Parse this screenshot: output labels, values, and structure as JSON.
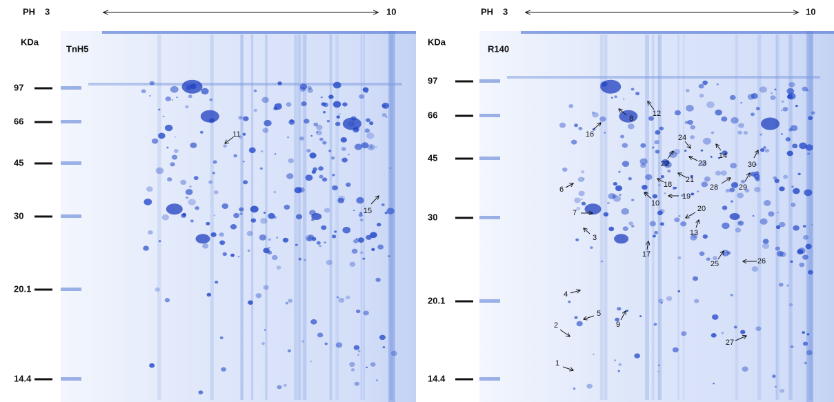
{
  "panels": [
    {
      "ph_label": "PH",
      "ph_start": "3",
      "ph_end": "10",
      "unit": "KDa",
      "sample": "TnH5",
      "markers": [
        97,
        66,
        45,
        30,
        20.1,
        14.4
      ],
      "spots": [
        "11",
        "15"
      ]
    },
    {
      "ph_label": "PH",
      "ph_start": "3",
      "ph_end": "10",
      "unit": "KDa",
      "sample": "R140",
      "markers": [
        97,
        66,
        45,
        30,
        20.1,
        14.4
      ],
      "spots": [
        "12",
        "8",
        "16",
        "24",
        "14",
        "22",
        "23",
        "30",
        "6",
        "18",
        "21",
        "28",
        "29",
        "19",
        "10",
        "7",
        "20",
        "13",
        "3",
        "17",
        "25",
        "26",
        "4",
        "5",
        "9",
        "2",
        "27",
        "1"
      ]
    }
  ]
}
